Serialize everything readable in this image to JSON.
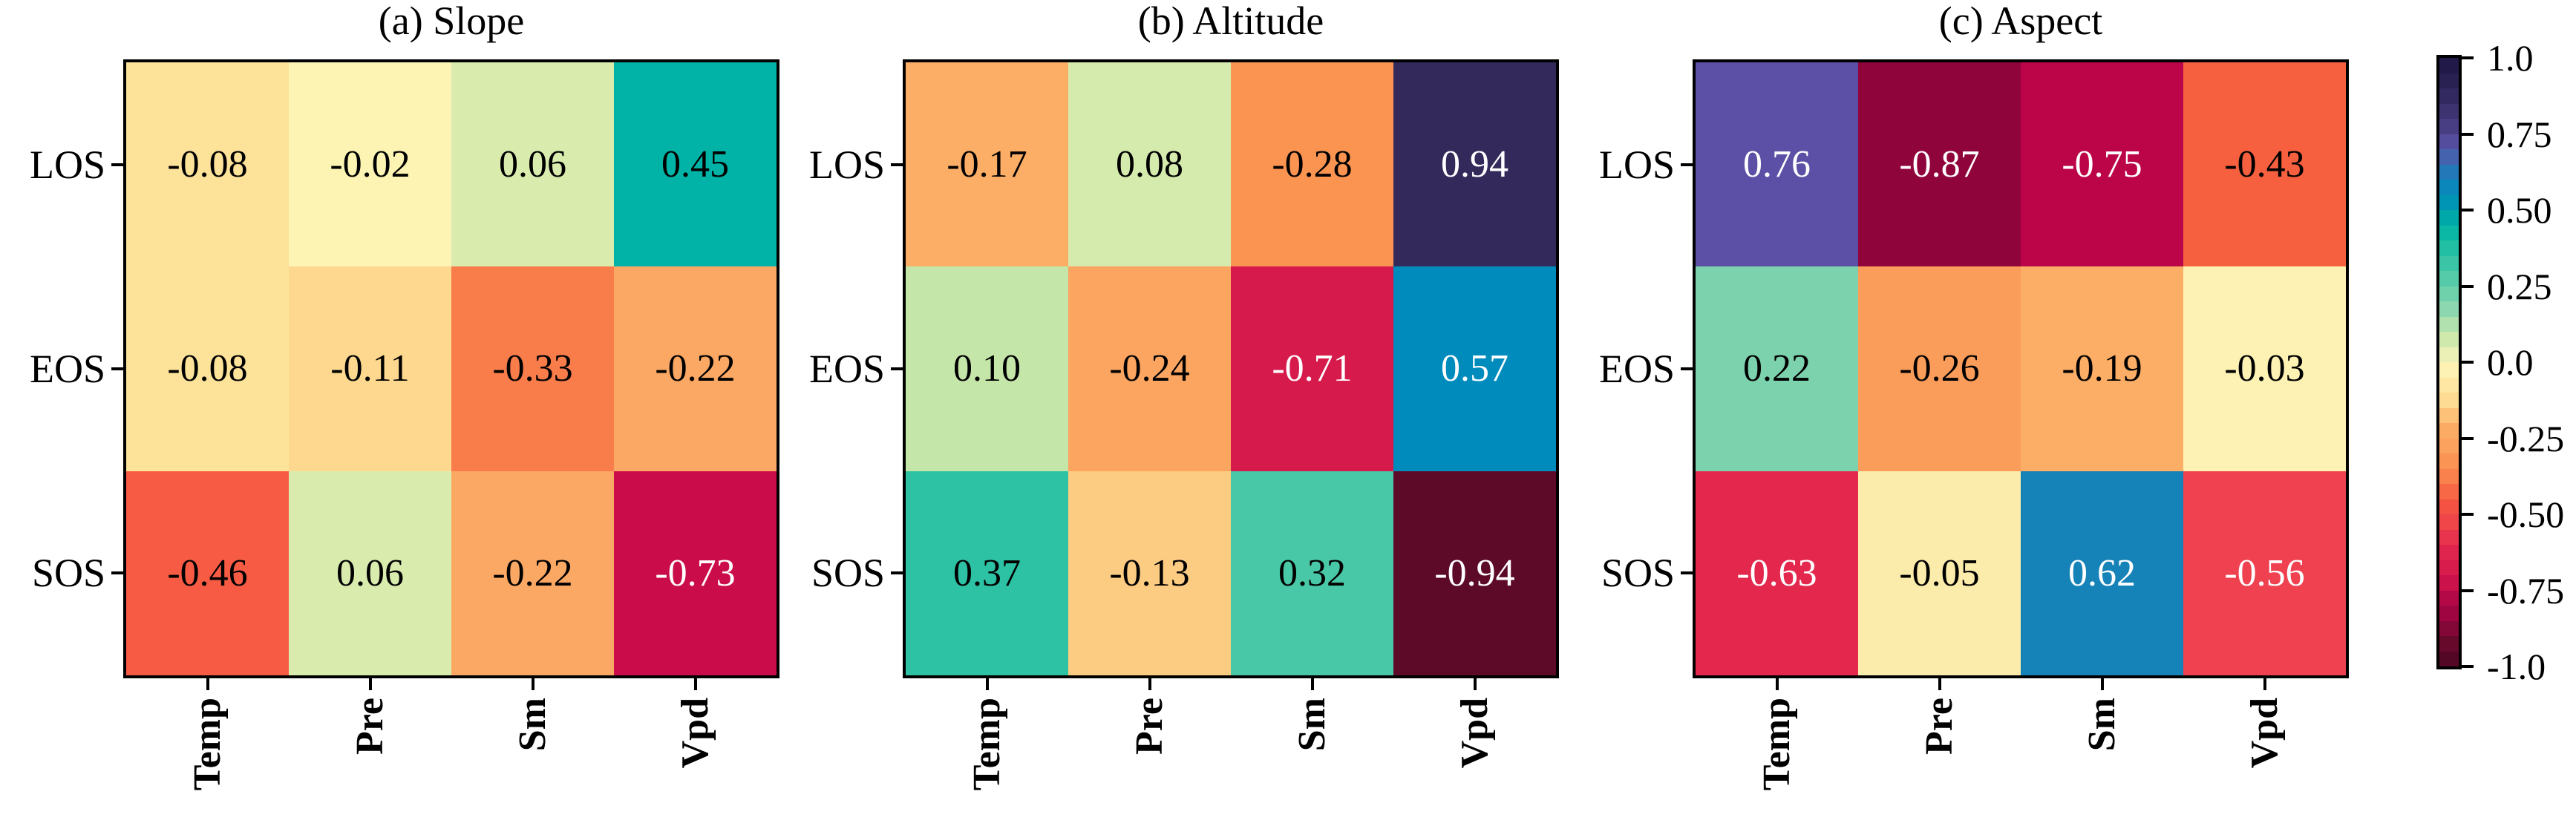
{
  "figure_background": "#ffffff",
  "chart_data": {
    "type": "heatmap",
    "description": "Three correlation heatmaps sharing one colorbar",
    "rows": [
      "LOS",
      "EOS",
      "SOS"
    ],
    "columns": [
      "Temp",
      "Pre",
      "Sm",
      "Vpd"
    ],
    "panels": [
      {
        "id": "slope",
        "title": "(a) Slope",
        "values": [
          [
            -0.08,
            -0.02,
            0.06,
            0.45
          ],
          [
            -0.08,
            -0.11,
            -0.33,
            -0.22
          ],
          [
            -0.46,
            0.06,
            -0.22,
            -0.73
          ]
        ],
        "cell_colors": [
          [
            "#fde29a",
            "#fdf3b3",
            "#d9ecae",
            "#00b3a6"
          ],
          [
            "#fde29a",
            "#fdd88e",
            "#f97c4b",
            "#fba864"
          ],
          [
            "#f75b44",
            "#d9ecae",
            "#fba864",
            "#cb0c4b"
          ]
        ]
      },
      {
        "id": "altitude",
        "title": "(b) Altitude",
        "values": [
          [
            -0.17,
            0.08,
            -0.28,
            0.94
          ],
          [
            0.1,
            -0.24,
            -0.71,
            0.57
          ],
          [
            0.37,
            -0.13,
            0.32,
            -0.94
          ]
        ],
        "cell_colors": [
          [
            "#fcae66",
            "#d5eaad",
            "#fc9451",
            "#33295a"
          ],
          [
            "#c5e6a9",
            "#fba561",
            "#d61a4b",
            "#008bbd"
          ],
          [
            "#2dc2a4",
            "#fccc82",
            "#49c8a8",
            "#5c0a28"
          ]
        ]
      },
      {
        "id": "aspect",
        "title": "(c) Aspect",
        "values": [
          [
            0.76,
            -0.87,
            -0.75,
            -0.43
          ],
          [
            0.22,
            -0.26,
            -0.19,
            -0.03
          ],
          [
            -0.63,
            -0.05,
            0.62,
            -0.56
          ]
        ],
        "cell_colors": [
          [
            "#5b50a5",
            "#90043c",
            "#bc0448",
            "#f7603f"
          ],
          [
            "#7dd2ae",
            "#fb9d5a",
            "#fcae66",
            "#fdf2b3"
          ],
          [
            "#e4284d",
            "#fcecab",
            "#1582b8",
            "#ef4150"
          ]
        ]
      }
    ],
    "value_text_colors": {
      "light": "#ffffff",
      "dark": "#000000",
      "light_if_abs_greater_than": 0.5
    },
    "colorbar": {
      "range": [
        -1.0,
        1.0
      ],
      "tick_values": [
        1.0,
        0.75,
        0.5,
        0.25,
        0.0,
        -0.25,
        -0.5,
        -0.75,
        -1.0
      ],
      "tick_labels": [
        "1.0",
        "0.75",
        "0.50",
        "0.25",
        "0.0",
        "-0.25",
        "-0.50",
        "-0.75",
        "-1.0"
      ],
      "stops": [
        [
          1.0,
          "#1d1743"
        ],
        [
          0.9,
          "#2c2456"
        ],
        [
          0.8,
          "#413878"
        ],
        [
          0.75,
          "#4c4390"
        ],
        [
          0.7,
          "#5b55a8"
        ],
        [
          0.65,
          "#2f6fb4"
        ],
        [
          0.6,
          "#1682ba"
        ],
        [
          0.55,
          "#008cbc"
        ],
        [
          0.5,
          "#009cae"
        ],
        [
          0.45,
          "#00b3a6"
        ],
        [
          0.4,
          "#16bba4"
        ],
        [
          0.35,
          "#2dc2a4"
        ],
        [
          0.3,
          "#49c8a8"
        ],
        [
          0.25,
          "#60cdaa"
        ],
        [
          0.2,
          "#7dd2ae"
        ],
        [
          0.15,
          "#9cdcb2"
        ],
        [
          0.1,
          "#c5e6a9"
        ],
        [
          0.05,
          "#d9ecae"
        ],
        [
          0.0,
          "#fdf6bd"
        ],
        [
          -0.05,
          "#fcecab"
        ],
        [
          -0.1,
          "#fde29a"
        ],
        [
          -0.15,
          "#fdd48a"
        ],
        [
          -0.2,
          "#fcae66"
        ],
        [
          -0.25,
          "#fba864"
        ],
        [
          -0.3,
          "#fb9d5a"
        ],
        [
          -0.35,
          "#f98b51"
        ],
        [
          -0.4,
          "#f7764a"
        ],
        [
          -0.45,
          "#f75b44"
        ],
        [
          -0.5,
          "#f04b42"
        ],
        [
          -0.55,
          "#ef4150"
        ],
        [
          -0.6,
          "#e4284d"
        ],
        [
          -0.65,
          "#da204c"
        ],
        [
          -0.7,
          "#d61a4b"
        ],
        [
          -0.75,
          "#c00a49"
        ],
        [
          -0.8,
          "#a90845"
        ],
        [
          -0.85,
          "#96053e"
        ],
        [
          -0.9,
          "#70082f"
        ],
        [
          -0.95,
          "#5c0a28"
        ],
        [
          -1.0,
          "#4a0420"
        ]
      ]
    }
  }
}
